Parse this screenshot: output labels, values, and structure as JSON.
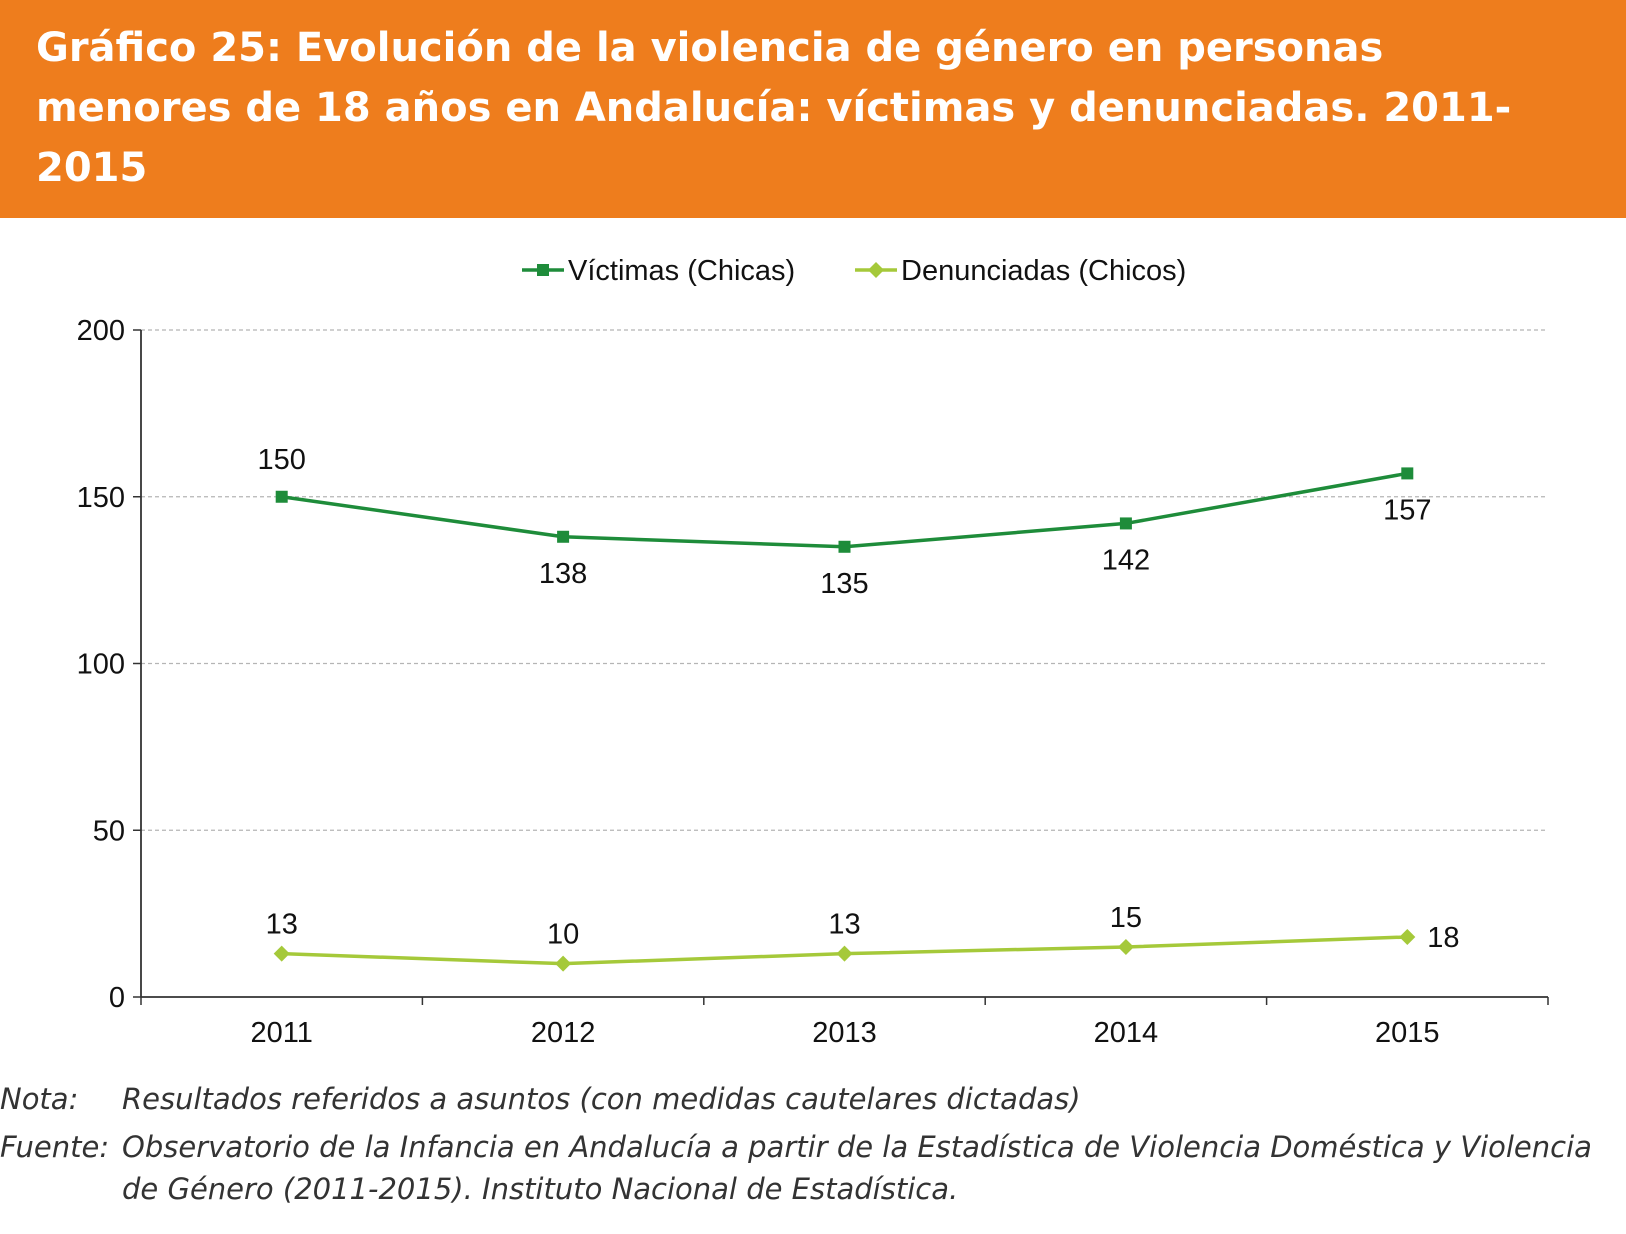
{
  "header": {
    "title": "Gráfico 25: Evolución de la violencia de género en personas menores de 18 años en Andalucía: víctimas y denunciadas. 2011-2015"
  },
  "chart_data": {
    "type": "line",
    "title": "Gráfico 25: Evolución de la violencia de género en personas menores de 18 años en Andalucía: víctimas y denunciadas. 2011-2015",
    "xlabel": "",
    "ylabel": "",
    "x": [
      "2011",
      "2012",
      "2013",
      "2014",
      "2015"
    ],
    "ylim": [
      0,
      200
    ],
    "yticks": [
      "0",
      "50",
      "100",
      "150",
      "200"
    ],
    "grid": "horizontal dashed",
    "legend_position": "top-center",
    "series": [
      {
        "name": "Víctimas (Chicas)",
        "values": [
          150,
          138,
          135,
          142,
          157
        ],
        "labels": [
          "150",
          "138",
          "135",
          "142",
          "157"
        ],
        "color": "#1e8c3a",
        "marker": "square"
      },
      {
        "name": "Denunciadas (Chicos)",
        "values": [
          13,
          10,
          13,
          15,
          18
        ],
        "labels": [
          "13",
          "10",
          "13",
          "15",
          "18"
        ],
        "color": "#a5c93a",
        "marker": "diamond"
      }
    ]
  },
  "notes": {
    "nota_label": "Nota:",
    "nota_text": "Resultados referidos a asuntos (con medidas cautelares dictadas)",
    "fuente_label": "Fuente:",
    "fuente_text": "Observatorio de la Infancia en Andalucía a partir de la Estadística de Violencia Doméstica y Violencia de Género (2011-2015). Instituto Nacional de Estadística."
  }
}
